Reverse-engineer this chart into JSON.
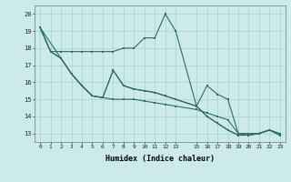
{
  "xlabel": "Humidex (Indice chaleur)",
  "bg_color": "#cceaea",
  "grid_color": "#aacfcf",
  "line_color": "#2d6b63",
  "xlim": [
    -0.5,
    23.5
  ],
  "ylim": [
    12.5,
    20.5
  ],
  "xticks": [
    0,
    1,
    2,
    3,
    4,
    5,
    6,
    7,
    8,
    9,
    10,
    11,
    12,
    13,
    15,
    16,
    17,
    18,
    19,
    20,
    21,
    22,
    23
  ],
  "yticks": [
    13,
    14,
    15,
    16,
    17,
    18,
    19,
    20
  ],
  "line1_x": [
    0,
    1,
    2,
    3,
    4,
    5,
    6,
    7,
    8,
    9,
    10,
    11,
    12,
    13,
    15,
    16,
    17,
    18,
    19,
    20,
    21,
    22,
    23
  ],
  "line1_y": [
    19.2,
    17.8,
    17.8,
    17.8,
    17.8,
    17.8,
    17.8,
    17.8,
    18.0,
    18.0,
    18.6,
    18.6,
    20.0,
    19.0,
    14.6,
    15.8,
    15.3,
    15.0,
    13.0,
    13.0,
    13.0,
    13.2,
    13.0
  ],
  "line2_x": [
    0,
    1,
    2,
    3,
    4,
    5,
    6,
    7,
    8,
    9,
    10,
    11,
    12,
    13,
    15,
    16,
    17,
    18,
    19,
    20,
    21,
    22,
    23
  ],
  "line2_y": [
    19.2,
    17.8,
    17.4,
    16.5,
    15.8,
    15.2,
    15.1,
    15.0,
    15.0,
    15.0,
    14.9,
    14.8,
    14.7,
    14.6,
    14.4,
    14.2,
    14.0,
    13.8,
    13.0,
    12.9,
    13.0,
    13.2,
    12.9
  ],
  "line3_x": [
    0,
    2,
    3,
    4,
    5,
    6,
    7,
    8,
    9,
    10,
    11,
    12,
    13,
    15,
    16,
    17,
    18,
    19,
    20,
    21,
    22,
    23
  ],
  "line3_y": [
    19.2,
    17.4,
    16.5,
    15.8,
    15.2,
    15.1,
    16.7,
    15.8,
    15.6,
    15.5,
    15.4,
    15.2,
    15.0,
    14.6,
    14.0,
    13.6,
    13.2,
    12.9,
    12.9,
    13.0,
    13.2,
    12.9
  ],
  "line4_x": [
    0,
    1,
    2,
    3,
    4,
    5,
    6,
    7,
    8,
    9,
    10,
    11,
    12,
    13,
    15,
    16,
    17,
    18,
    19,
    20,
    21,
    22,
    23
  ],
  "line4_y": [
    19.2,
    17.8,
    17.4,
    16.5,
    15.8,
    15.2,
    15.1,
    16.7,
    15.8,
    15.6,
    15.5,
    15.4,
    15.2,
    15.0,
    14.6,
    14.0,
    13.6,
    13.2,
    12.9,
    12.9,
    13.0,
    13.2,
    12.9
  ]
}
